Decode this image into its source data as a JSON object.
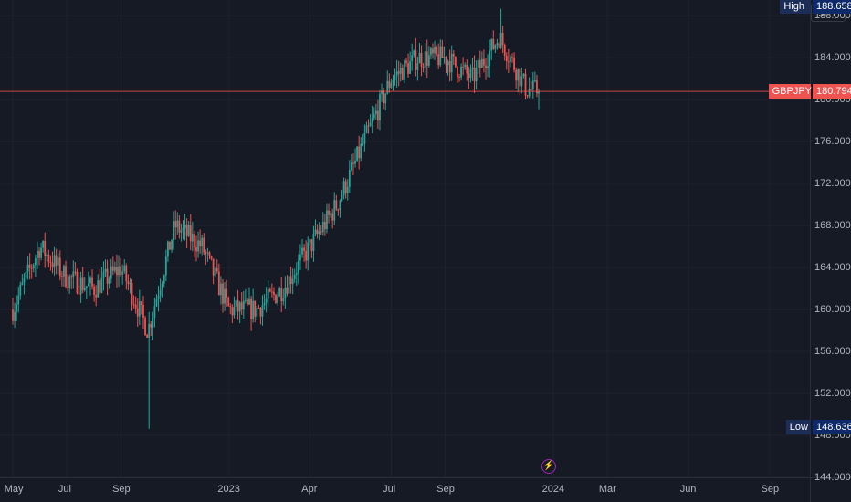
{
  "symbol": "GBPJPY",
  "currency": "JPY",
  "markers": {
    "high_label": "High",
    "high_value": "188.658",
    "low_label": "Low",
    "low_value": "148.636",
    "last_label": "GBPJPY",
    "last_value": "180.794"
  },
  "colors": {
    "background": "#161a25",
    "up": "#26a69a",
    "down": "#ef5350",
    "grid": "#1f2330",
    "price_line": "#ef5350",
    "high_low_tag": "#0e2a6b",
    "text": "#b2b5be"
  },
  "icons": {
    "flash": "lightning-icon"
  },
  "chart_data": {
    "type": "candlestick",
    "y_range": [
      144,
      189.5
    ],
    "price_scale": [
      "188.000",
      "184.000",
      "180.000",
      "176.000",
      "172.000",
      "168.000",
      "164.000",
      "160.000",
      "156.000",
      "152.000",
      "148.000",
      "144.000"
    ],
    "time_scale": [
      "May",
      "Jul",
      "Sep",
      "2023",
      "Apr",
      "Jul",
      "Sep",
      "2024",
      "Mar",
      "Jun",
      "Sep"
    ],
    "high": 188.658,
    "low": 148.636,
    "last": 180.794,
    "approx_path": [
      {
        "date": "2022-05",
        "price": 160
      },
      {
        "date": "2022-06",
        "price": 166
      },
      {
        "date": "2022-07",
        "price": 163
      },
      {
        "date": "2022-08",
        "price": 162
      },
      {
        "date": "2022-09",
        "price": 164
      },
      {
        "date": "2022-10",
        "price": 158
      },
      {
        "date": "2022-11",
        "price": 168
      },
      {
        "date": "2022-12",
        "price": 166
      },
      {
        "date": "2023-01",
        "price": 160
      },
      {
        "date": "2023-02",
        "price": 160
      },
      {
        "date": "2023-03",
        "price": 162
      },
      {
        "date": "2023-04",
        "price": 166
      },
      {
        "date": "2023-05",
        "price": 170
      },
      {
        "date": "2023-06",
        "price": 176
      },
      {
        "date": "2023-07",
        "price": 182
      },
      {
        "date": "2023-08",
        "price": 184
      },
      {
        "date": "2023-09",
        "price": 184
      },
      {
        "date": "2023-10",
        "price": 182
      },
      {
        "date": "2023-11",
        "price": 186
      },
      {
        "date": "2023-12",
        "price": 181
      }
    ]
  }
}
